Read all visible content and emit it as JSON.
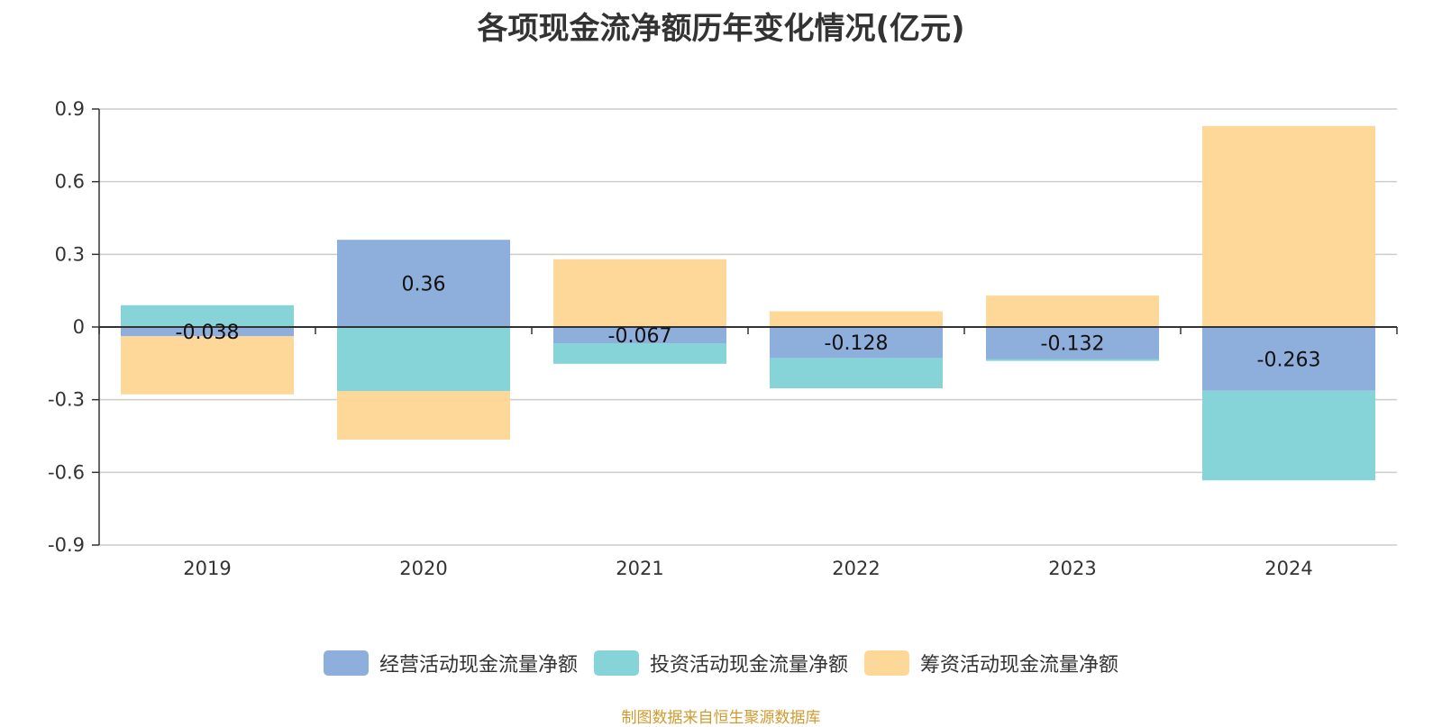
{
  "chart_data": {
    "type": "bar",
    "stacked": true,
    "title": "各项现金流净额历年变化情况(亿元)",
    "xlabel": "",
    "ylabel": "",
    "categories": [
      "2019",
      "2020",
      "2021",
      "2022",
      "2023",
      "2024"
    ],
    "ylim": [
      -0.9,
      0.9
    ],
    "yticks": [
      0.9,
      0.6,
      0.3,
      0,
      -0.3,
      -0.6,
      -0.9
    ],
    "ytick_labels": [
      "0.9",
      "0.6",
      "0.3",
      "0",
      "-0.3",
      "-0.6",
      "-0.9"
    ],
    "grid": true,
    "legend_position": "bottom",
    "series": [
      {
        "name": "经营活动现金流量净额",
        "color": "#8eaedc",
        "values": [
          -0.038,
          0.36,
          -0.067,
          -0.128,
          -0.132,
          -0.263
        ],
        "labels": [
          "-0.038",
          "0.36",
          "-0.067",
          "-0.128",
          "-0.132",
          "-0.263"
        ]
      },
      {
        "name": "投资活动现金流量净额",
        "color": "#86d4d8",
        "values": [
          0.09,
          -0.265,
          -0.085,
          -0.125,
          -0.008,
          -0.37
        ]
      },
      {
        "name": "筹资活动现金流量净额",
        "color": "#fdd899",
        "values": [
          -0.24,
          -0.2,
          0.28,
          0.065,
          0.13,
          0.83
        ]
      }
    ]
  },
  "source_note": "制图数据来自恒生聚源数据库"
}
